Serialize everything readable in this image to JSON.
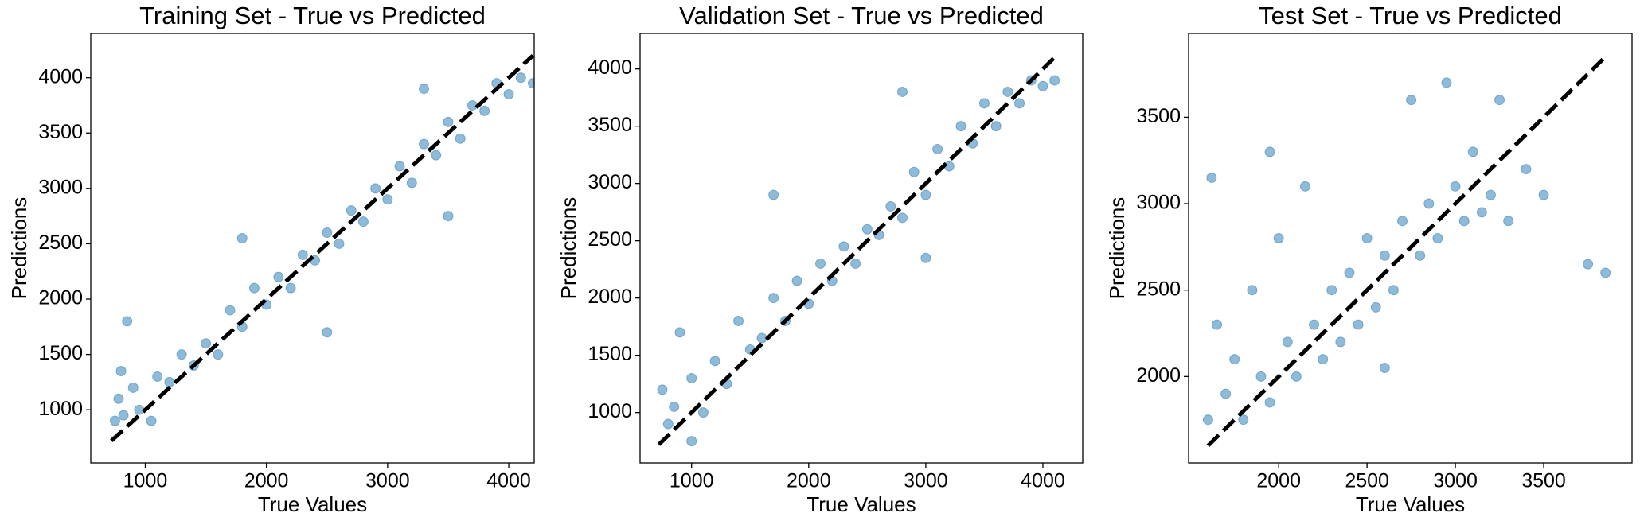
{
  "chart_data": [
    {
      "type": "scatter",
      "title": "Training Set - True vs Predicted",
      "xlabel": "True Values",
      "ylabel": "Predictions",
      "color": "#1f77b4",
      "alpha": 0.5,
      "xlim": [
        550,
        4210
      ],
      "ylim": [
        520,
        4400
      ],
      "xticks": [
        1000,
        2000,
        3000,
        4000
      ],
      "yticks": [
        1000,
        1500,
        2000,
        2500,
        3000,
        3500,
        4000
      ],
      "x": [
        750,
        780,
        800,
        820,
        850,
        900,
        950,
        1100,
        1200,
        1300,
        1400,
        1500,
        1600,
        1700,
        1800,
        1900,
        2000,
        2100,
        2200,
        2300,
        2400,
        2500,
        2600,
        2700,
        2800,
        2900,
        3000,
        3100,
        3200,
        3300,
        3400,
        3500,
        3600,
        3700,
        3800,
        3900,
        4000,
        4100,
        4200,
        1800,
        2500,
        3300,
        3500,
        1050
      ],
      "values": [
        900,
        1100,
        1350,
        950,
        1800,
        1200,
        1000,
        1300,
        1250,
        1500,
        1400,
        1600,
        1500,
        1900,
        1750,
        2100,
        1950,
        2200,
        2100,
        2400,
        2350,
        2600,
        2500,
        2800,
        2700,
        3000,
        2900,
        3200,
        3050,
        3400,
        3300,
        3600,
        3450,
        3750,
        3700,
        3950,
        3850,
        4000,
        3950,
        2550,
        1700,
        3900,
        2750,
        900
      ],
      "reference_line": {
        "x": [
          720,
          4200
        ],
        "y": [
          720,
          4200
        ],
        "color": "#000000",
        "dashed": true
      }
    },
    {
      "type": "scatter",
      "title": "Validation Set - True vs Predicted",
      "xlabel": "True Values",
      "ylabel": "Predictions",
      "color": "#1f77b4",
      "alpha": 0.5,
      "xlim": [
        560,
        4340
      ],
      "ylim": [
        560,
        4310
      ],
      "xticks": [
        1000,
        2000,
        3000,
        4000
      ],
      "yticks": [
        1000,
        1500,
        2000,
        2500,
        3000,
        3500,
        4000
      ],
      "x": [
        750,
        800,
        850,
        900,
        1000,
        1100,
        1200,
        1300,
        1400,
        1500,
        1600,
        1700,
        1800,
        1900,
        2000,
        2100,
        2200,
        2300,
        2400,
        2500,
        2600,
        2700,
        2800,
        2900,
        3000,
        3100,
        3200,
        3300,
        3400,
        3500,
        3600,
        3700,
        3800,
        3900,
        4000,
        4100,
        1700,
        2800,
        3000,
        1000
      ],
      "values": [
        1200,
        900,
        1050,
        1700,
        1300,
        1000,
        1450,
        1250,
        1800,
        1550,
        1650,
        2000,
        1800,
        2150,
        1950,
        2300,
        2150,
        2450,
        2300,
        2600,
        2550,
        2800,
        2700,
        3100,
        2900,
        3300,
        3150,
        3500,
        3350,
        3700,
        3500,
        3800,
        3700,
        3900,
        3850,
        3900,
        2900,
        3800,
        2350,
        750
      ],
      "reference_line": {
        "x": [
          720,
          4100
        ],
        "y": [
          720,
          4100
        ],
        "color": "#000000",
        "dashed": true
      }
    },
    {
      "type": "scatter",
      "title": "Test Set - True vs Predicted",
      "xlabel": "True Values",
      "ylabel": "Predictions",
      "color": "#1f77b4",
      "alpha": 0.5,
      "xlim": [
        1490,
        4000
      ],
      "ylim": [
        1500,
        3985
      ],
      "xticks": [
        2000,
        2500,
        3000,
        3500
      ],
      "yticks": [
        2000,
        2500,
        3000,
        3500
      ],
      "x": [
        1600,
        1620,
        1650,
        1700,
        1750,
        1800,
        1850,
        1900,
        1950,
        2000,
        2050,
        2100,
        2150,
        2200,
        2250,
        2300,
        2350,
        2400,
        2450,
        2500,
        2550,
        2600,
        2650,
        2700,
        2750,
        2800,
        2850,
        2900,
        2950,
        3000,
        3050,
        3100,
        3150,
        3200,
        3250,
        3300,
        3400,
        3500,
        3750,
        3850,
        1950,
        2600
      ],
      "values": [
        1750,
        3150,
        2300,
        1900,
        2100,
        1750,
        2500,
        2000,
        1850,
        2800,
        2200,
        2000,
        3100,
        2300,
        2100,
        2500,
        2200,
        2600,
        2300,
        2800,
        2400,
        2700,
        2500,
        2900,
        3600,
        2700,
        3000,
        2800,
        3700,
        3100,
        2900,
        3300,
        2950,
        3050,
        3600,
        2900,
        3200,
        3050,
        2650,
        2600,
        3300,
        2050
      ],
      "reference_line": {
        "x": [
          1600,
          3860
        ],
        "y": [
          1600,
          3860
        ],
        "color": "#000000",
        "dashed": true
      }
    }
  ]
}
